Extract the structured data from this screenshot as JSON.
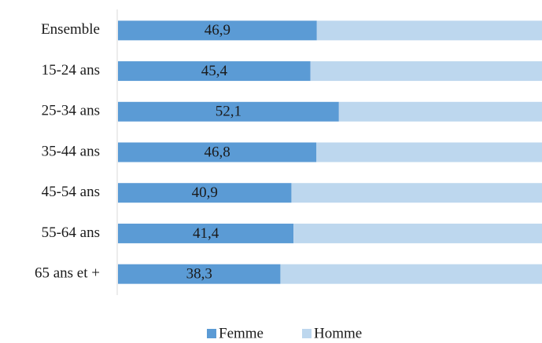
{
  "chart_data": {
    "type": "stacked_bar_horizontal",
    "categories": [
      "Ensemble",
      "15-24 ans",
      "25-34 ans",
      "35-44 ans",
      "45-54 ans",
      "55-64 ans",
      "65 ans et +"
    ],
    "series": [
      {
        "name": "Femme",
        "color": "#5b9bd5",
        "values": [
          46.9,
          45.4,
          52.1,
          46.8,
          40.9,
          41.4,
          38.3
        ],
        "value_labels": [
          "46,9",
          "45,4",
          "52,1",
          "46,8",
          "40,9",
          "41,4",
          "38,3"
        ]
      },
      {
        "name": "Homme",
        "color": "#bdd7ee",
        "values": [
          53.1,
          54.6,
          47.9,
          53.2,
          59.1,
          58.6,
          61.7
        ]
      }
    ],
    "legend": "bottom"
  }
}
